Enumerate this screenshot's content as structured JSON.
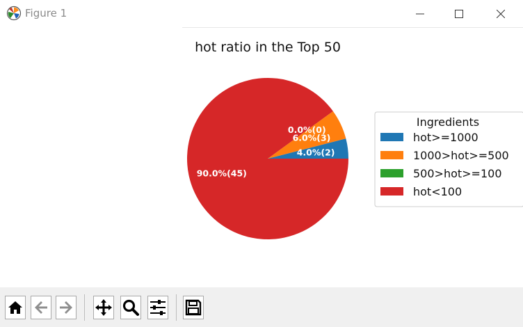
{
  "window": {
    "title": "Figure 1",
    "app_icon": "matplotlib-icon",
    "controls": [
      "minimize-icon",
      "maximize-icon",
      "close-icon"
    ]
  },
  "chart_data": {
    "type": "pie",
    "title": "hot ratio in the Top 50",
    "slices": [
      {
        "label": "hot>=1000",
        "value": 2,
        "percent": 4.0,
        "display": "4.0%(2)",
        "color": "#1f77b4"
      },
      {
        "label": "1000>hot>=500",
        "value": 3,
        "percent": 6.0,
        "display": "6.0%(3)",
        "color": "#ff7f0e"
      },
      {
        "label": "500>hot>=100",
        "value": 0,
        "percent": 0.0,
        "display": "0.0%(0)",
        "color": "#2ca02c"
      },
      {
        "label": "hot<100",
        "value": 45,
        "percent": 90.0,
        "display": "90.0%(45)",
        "color": "#d62728"
      }
    ],
    "start_angle_deg": 0,
    "direction": "counterclockwise",
    "legend": {
      "title": "Ingredients",
      "placement": "right"
    }
  },
  "toolbar": {
    "buttons": [
      "home-icon",
      "back-icon",
      "forward-icon",
      "pan-icon",
      "zoom-icon",
      "configure-subplots-icon",
      "save-icon"
    ]
  }
}
